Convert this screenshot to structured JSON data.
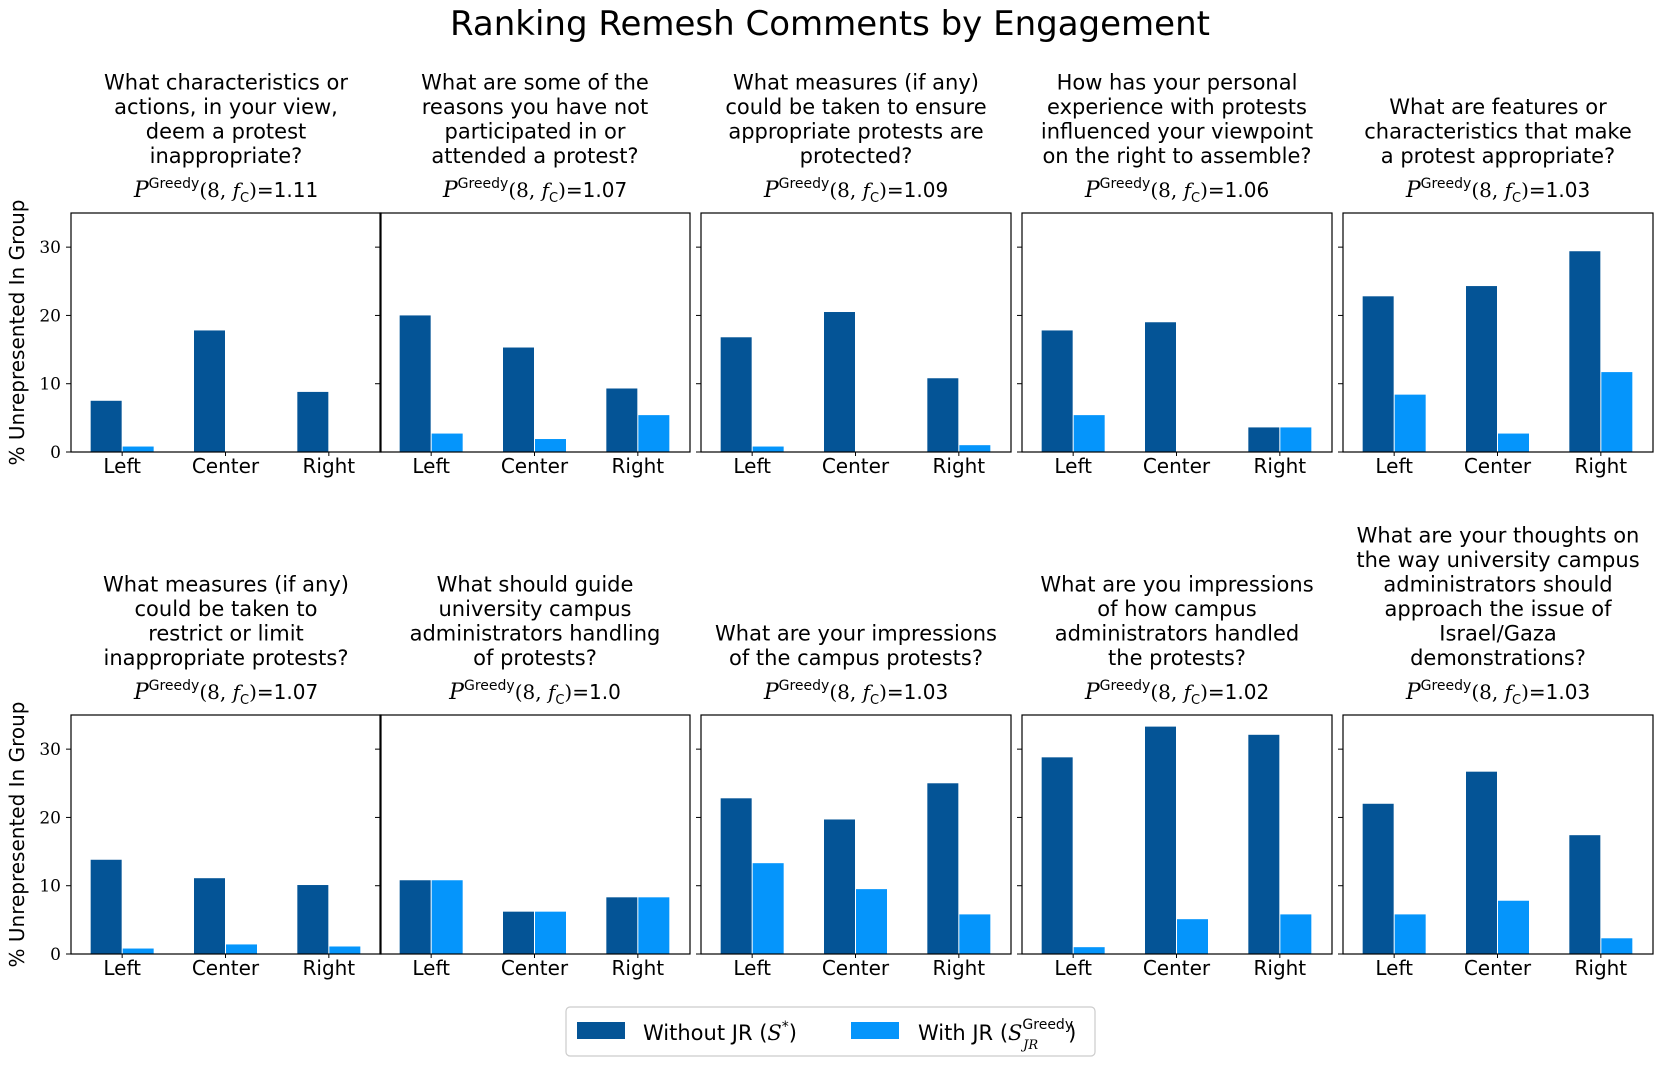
{
  "figure_title": "Ranking Remesh Comments by Engagement",
  "colors": {
    "without": "#045496",
    "with": "#0595fb",
    "frame": "#000000"
  },
  "metric": {
    "symbol": "P",
    "superscript": "Greedy",
    "args": "(8, ",
    "f_sym": "f",
    "f_sub": "C",
    "args_close": ")",
    "eq": "="
  },
  "legend": {
    "without": {
      "label": "Without JR (",
      "sym": "S",
      "sup": "*",
      "close": ")"
    },
    "with": {
      "label": "With JR (",
      "sym": "S",
      "sup": "Greedy",
      "sub": "JR",
      "close": ")"
    },
    "placement": "bottom-center"
  },
  "chart_data": [
    {
      "type": "bar",
      "question": [
        "What characteristics or",
        "actions, in your view,",
        "deem a protest",
        "inappropriate?"
      ],
      "score": "1.11",
      "categories": [
        "Left",
        "Center",
        "Right"
      ],
      "ylabel": "% Unrepresented In Group",
      "ylim": [
        0,
        35
      ],
      "yticks": [
        0,
        10,
        20,
        30
      ],
      "series": [
        {
          "name": "Without JR (S*)",
          "values": [
            7.5,
            17.8,
            8.8
          ]
        },
        {
          "name": "With JR (S_JR^Greedy)",
          "values": [
            0.8,
            0.0,
            0.0
          ]
        }
      ]
    },
    {
      "type": "bar",
      "question": [
        "What are some of the",
        "reasons you have not",
        "participated in or",
        "attended a protest?"
      ],
      "score": "1.07",
      "categories": [
        "Left",
        "Center",
        "Right"
      ],
      "ylabel": "",
      "ylim": [
        0,
        35
      ],
      "yticks": [
        0,
        10,
        20,
        30
      ],
      "series": [
        {
          "name": "Without JR (S*)",
          "values": [
            20.0,
            15.3,
            9.3
          ]
        },
        {
          "name": "With JR (S_JR^Greedy)",
          "values": [
            2.7,
            1.9,
            5.4
          ]
        }
      ]
    },
    {
      "type": "bar",
      "question": [
        "What measures (if any)",
        "could be taken to ensure",
        "appropriate protests are",
        "protected?"
      ],
      "score": "1.09",
      "categories": [
        "Left",
        "Center",
        "Right"
      ],
      "ylabel": "",
      "ylim": [
        0,
        35
      ],
      "yticks": [
        0,
        10,
        20,
        30
      ],
      "series": [
        {
          "name": "Without JR (S*)",
          "values": [
            16.8,
            20.5,
            10.8
          ]
        },
        {
          "name": "With JR (S_JR^Greedy)",
          "values": [
            0.8,
            0.0,
            1.0
          ]
        }
      ]
    },
    {
      "type": "bar",
      "question": [
        "How has your personal",
        "experience with protests",
        "influenced your viewpoint",
        "on the right to assemble?"
      ],
      "score": "1.06",
      "categories": [
        "Left",
        "Center",
        "Right"
      ],
      "ylabel": "",
      "ylim": [
        0,
        35
      ],
      "yticks": [
        0,
        10,
        20,
        30
      ],
      "series": [
        {
          "name": "Without JR (S*)",
          "values": [
            17.8,
            19.0,
            3.6
          ]
        },
        {
          "name": "With JR (S_JR^Greedy)",
          "values": [
            5.4,
            0.0,
            3.6
          ]
        }
      ]
    },
    {
      "type": "bar",
      "question": [
        "What are features or",
        "characteristics that make",
        "a protest appropriate?"
      ],
      "score": "1.03",
      "categories": [
        "Left",
        "Center",
        "Right"
      ],
      "ylabel": "",
      "ylim": [
        0,
        35
      ],
      "yticks": [
        0,
        10,
        20,
        30
      ],
      "series": [
        {
          "name": "Without JR (S*)",
          "values": [
            22.8,
            24.3,
            29.4
          ]
        },
        {
          "name": "With JR (S_JR^Greedy)",
          "values": [
            8.4,
            2.7,
            11.7
          ]
        }
      ]
    },
    {
      "type": "bar",
      "question": [
        "What measures (if any)",
        "could be taken to",
        "restrict or limit",
        "inappropriate protests?"
      ],
      "score": "1.07",
      "categories": [
        "Left",
        "Center",
        "Right"
      ],
      "ylabel": "% Unrepresented In Group",
      "ylim": [
        0,
        35
      ],
      "yticks": [
        0,
        10,
        20,
        30
      ],
      "series": [
        {
          "name": "Without JR (S*)",
          "values": [
            13.8,
            11.1,
            10.1
          ]
        },
        {
          "name": "With JR (S_JR^Greedy)",
          "values": [
            0.8,
            1.4,
            1.1
          ]
        }
      ]
    },
    {
      "type": "bar",
      "question": [
        "What should guide",
        "university campus",
        "administrators handling",
        "of protests?"
      ],
      "score": "1.0",
      "categories": [
        "Left",
        "Center",
        "Right"
      ],
      "ylabel": "",
      "ylim": [
        0,
        35
      ],
      "yticks": [
        0,
        10,
        20,
        30
      ],
      "series": [
        {
          "name": "Without JR (S*)",
          "values": [
            10.8,
            6.2,
            8.3
          ]
        },
        {
          "name": "With JR (S_JR^Greedy)",
          "values": [
            10.8,
            6.2,
            8.3
          ]
        }
      ]
    },
    {
      "type": "bar",
      "question": [
        "What are your impressions",
        "of the campus protests?"
      ],
      "score": "1.03",
      "categories": [
        "Left",
        "Center",
        "Right"
      ],
      "ylabel": "",
      "ylim": [
        0,
        35
      ],
      "yticks": [
        0,
        10,
        20,
        30
      ],
      "series": [
        {
          "name": "Without JR (S*)",
          "values": [
            22.8,
            19.7,
            25.0
          ]
        },
        {
          "name": "With JR (S_JR^Greedy)",
          "values": [
            13.3,
            9.5,
            5.8
          ]
        }
      ]
    },
    {
      "type": "bar",
      "question": [
        "What are you impressions",
        "of how campus",
        "administrators handled",
        "the protests?"
      ],
      "score": "1.02",
      "categories": [
        "Left",
        "Center",
        "Right"
      ],
      "ylabel": "",
      "ylim": [
        0,
        35
      ],
      "yticks": [
        0,
        10,
        20,
        30
      ],
      "series": [
        {
          "name": "Without JR (S*)",
          "values": [
            28.8,
            33.3,
            32.1
          ]
        },
        {
          "name": "With JR (S_JR^Greedy)",
          "values": [
            1.0,
            5.1,
            5.8
          ]
        }
      ]
    },
    {
      "type": "bar",
      "question": [
        "What are your thoughts on",
        "the way university campus",
        "administrators should",
        "approach the issue of",
        "Israel/Gaza",
        "demonstrations?"
      ],
      "score": "1.03",
      "categories": [
        "Left",
        "Center",
        "Right"
      ],
      "ylabel": "",
      "ylim": [
        0,
        35
      ],
      "yticks": [
        0,
        10,
        20,
        30
      ],
      "series": [
        {
          "name": "Without JR (S*)",
          "values": [
            22.0,
            26.7,
            17.4
          ]
        },
        {
          "name": "With JR (S_JR^Greedy)",
          "values": [
            5.8,
            7.8,
            2.3
          ]
        }
      ]
    }
  ]
}
